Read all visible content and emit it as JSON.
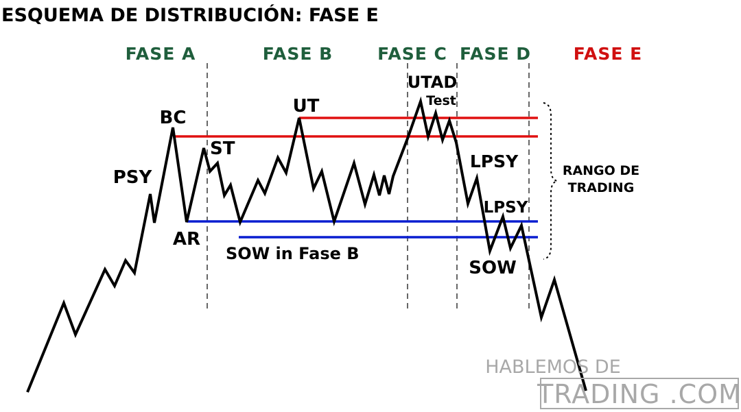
{
  "title": "ESQUEMA DE DISTRIBUCIÓN: FASE E",
  "colors": {
    "phase_green": "#1f5e3c",
    "phase_red": "#d01010",
    "resistance": "#e01010",
    "support": "#0a1ed0",
    "price": "#000000",
    "watermark": "#a8a8a8"
  },
  "phases": [
    {
      "label": "FASE A",
      "color": "phase_green"
    },
    {
      "label": "FASE B",
      "color": "phase_green"
    },
    {
      "label": "FASE C",
      "color": "phase_green"
    },
    {
      "label": "FASE D",
      "color": "phase_green"
    },
    {
      "label": "FASE E",
      "color": "phase_red"
    }
  ],
  "events": {
    "psy": "PSY",
    "bc": "BC",
    "ar": "AR",
    "st": "ST",
    "ut": "UT",
    "sow_b": "SOW in Fase B",
    "utad": "UTAD",
    "test": "Test",
    "lpsy1": "LPSY",
    "lpsy2": "LPSY",
    "sow": "SOW"
  },
  "range_label": [
    "RANGO DE",
    "TRADING"
  ],
  "watermark": {
    "line1": "HABLEMOS DE",
    "line2": "TRADING .COM"
  }
}
